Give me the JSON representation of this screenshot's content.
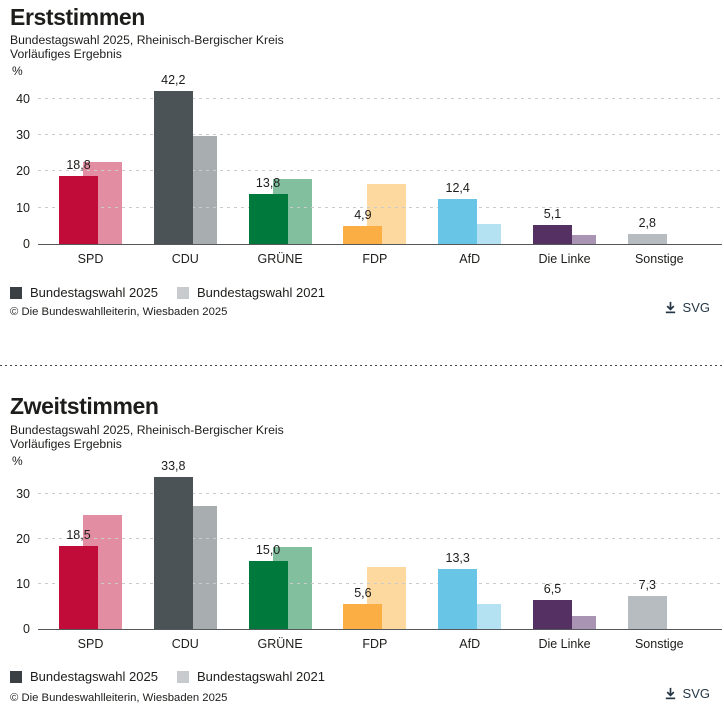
{
  "page": {
    "background": "#ffffff"
  },
  "colors": {
    "bar_current": [
      "#c10b38",
      "#4c5356",
      "#00793d",
      "#fbae43",
      "#69c5e5",
      "#553063",
      "#b7bcc0"
    ],
    "bar_previous": [
      "#e28da1",
      "#a8adb0",
      "#81bf9f",
      "#fdd9a0",
      "#b5e2f2",
      "#aa94b3",
      null
    ],
    "legend_current": "#3b4044",
    "legend_previous": "#c8cbcd",
    "link": "#253746",
    "grid": "#cbcbcb",
    "axis": "#55595c",
    "text": "#1d1d1b"
  },
  "chart_data": [
    {
      "type": "bar",
      "title": "Erststimmen",
      "subtitle_line1": "Bundestagswahl 2025, Rheinisch-Bergischer Kreis",
      "subtitle_line2": "Vorläufiges Ergebnis",
      "unit_label": "%",
      "ylim": [
        0,
        44
      ],
      "y_ticks": [
        0,
        10,
        20,
        30,
        40
      ],
      "grid": true,
      "legend_position": "bottom-left",
      "categories": [
        "SPD",
        "CDU",
        "GRÜNE",
        "FDP",
        "AfD",
        "Die Linke",
        "Sonstige"
      ],
      "series": [
        {
          "name": "Bundestagswahl 2025",
          "values": [
            18.8,
            42.2,
            13.8,
            4.9,
            12.4,
            5.1,
            2.8
          ],
          "labels": [
            "18,8",
            "42,2",
            "13,8",
            "4,9",
            "12,4",
            "5,1",
            "2,8"
          ]
        },
        {
          "name": "Bundestagswahl 2021",
          "values": [
            22.5,
            29.8,
            17.9,
            16.6,
            5.4,
            2.5,
            null
          ],
          "labels": [
            null,
            null,
            null,
            null,
            null,
            null,
            null
          ]
        }
      ],
      "source": "© Die Bundeswahlleiterin, Wiesbaden 2025",
      "download_label": "SVG"
    },
    {
      "type": "bar",
      "title": "Zweitstimmen",
      "subtitle_line1": "Bundestagswahl 2025, Rheinisch-Bergischer Kreis",
      "subtitle_line2": "Vorläufiges Ergebnis",
      "unit_label": "%",
      "ylim": [
        0,
        35.5
      ],
      "y_ticks": [
        0,
        10,
        20,
        30
      ],
      "grid": true,
      "legend_position": "bottom-left",
      "categories": [
        "SPD",
        "CDU",
        "GRÜNE",
        "FDP",
        "AfD",
        "Die Linke",
        "Sonstige"
      ],
      "series": [
        {
          "name": "Bundestagswahl 2025",
          "values": [
            18.5,
            33.8,
            15.0,
            5.6,
            13.3,
            6.5,
            7.3
          ],
          "labels": [
            "18,5",
            "33,8",
            "15,0",
            "5,6",
            "13,3",
            "6,5",
            "7,3"
          ]
        },
        {
          "name": "Bundestagswahl 2021",
          "values": [
            25.2,
            27.2,
            18.3,
            13.7,
            5.6,
            2.9,
            null
          ],
          "labels": [
            null,
            null,
            null,
            null,
            null,
            null,
            null
          ]
        }
      ],
      "source": "© Die Bundeswahlleiterin, Wiesbaden 2025",
      "download_label": "SVG"
    }
  ]
}
